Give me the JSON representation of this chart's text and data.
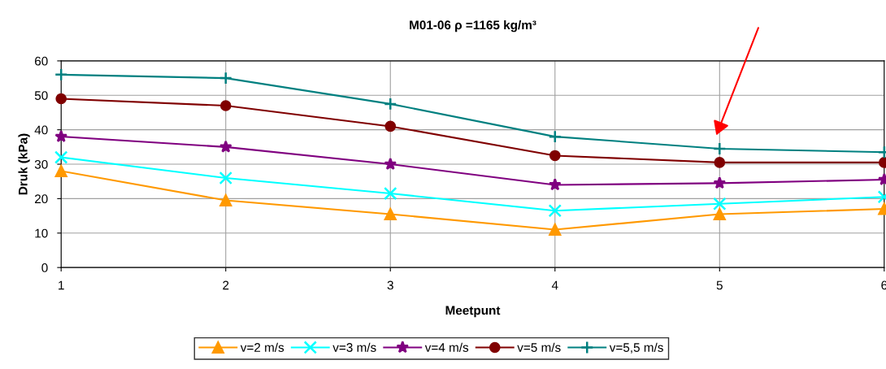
{
  "chart_data": {
    "type": "line",
    "title": "M01-06 ρ =1165 kg/m³",
    "xlabel": "Meetpunt",
    "ylabel": "Druk (kPa)",
    "x": [
      1,
      2,
      3,
      4,
      5,
      6
    ],
    "xlim": [
      1,
      6
    ],
    "xticks": [
      1,
      2,
      3,
      4,
      5,
      6
    ],
    "ylim": [
      0,
      60
    ],
    "yticks": [
      0,
      10,
      20,
      30,
      40,
      50,
      60
    ],
    "grid": true,
    "legend": "bottom",
    "line_style": "solid",
    "series": [
      {
        "name": "v=2 m/s",
        "color": "#ff9900",
        "marker": "triangle",
        "values": [
          28,
          19.5,
          15.5,
          11,
          15.5,
          17
        ]
      },
      {
        "name": "v=3 m/s",
        "color": "#00ffff",
        "marker": "cross",
        "values": [
          32,
          26,
          21.5,
          16.5,
          18.5,
          20.5
        ]
      },
      {
        "name": "v=4 m/s",
        "color": "#800080",
        "marker": "star",
        "values": [
          38,
          35,
          30,
          24,
          24.5,
          25.5
        ]
      },
      {
        "name": "v=5 m/s",
        "color": "#800000",
        "marker": "circle",
        "values": [
          49,
          47,
          41,
          32.5,
          30.5,
          30.5
        ]
      },
      {
        "name": "v=5,5 m/s",
        "color": "#008080",
        "marker": "plus",
        "values": [
          56,
          55,
          47.5,
          38,
          34.5,
          33.5
        ]
      }
    ]
  }
}
